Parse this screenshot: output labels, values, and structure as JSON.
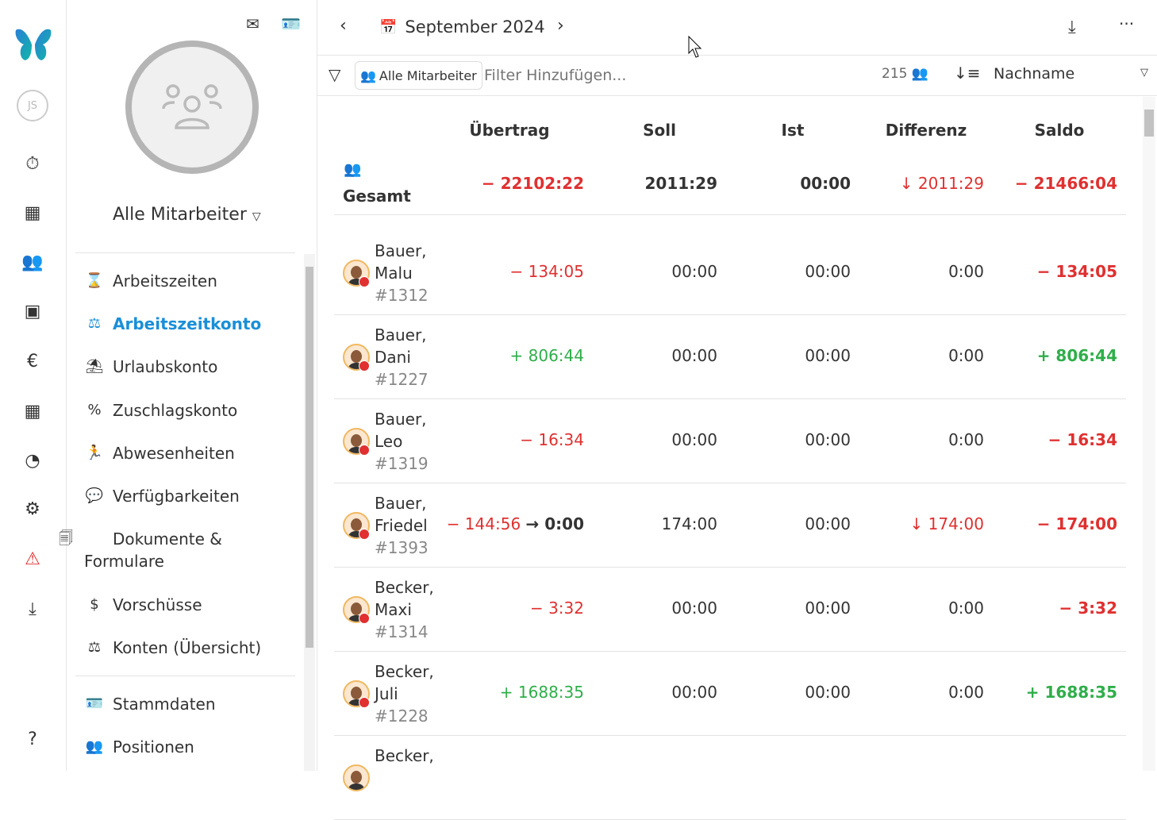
{
  "rail": {
    "user_initials": "JS",
    "items": [
      "stopwatch-icon",
      "table-icon",
      "team-icon",
      "contact-icon",
      "euro-icon",
      "calendar-icon",
      "pie-chart-icon",
      "gear-icon",
      "warning-icon",
      "download-icon"
    ],
    "help": "?"
  },
  "sidebar": {
    "group_title": "Alle Mitarbeiter",
    "items": [
      {
        "label": "Arbeitszeiten",
        "icon": "⌛"
      },
      {
        "label": "Arbeitszeitkonto",
        "icon": "⚖",
        "active": true
      },
      {
        "label": "Urlaubskonto",
        "icon": "⛱"
      },
      {
        "label": "Zuschlagskonto",
        "icon": "%"
      },
      {
        "label": "Abwesenheiten",
        "icon": "🏃"
      },
      {
        "label": "Verfügbarkeiten",
        "icon": "💬"
      },
      {
        "label": "Dokumente & Formulare",
        "icon": "🗐"
      },
      {
        "label": "Vorschüsse",
        "icon": "$"
      },
      {
        "label": "Konten (Übersicht)",
        "icon": "⚖"
      },
      {
        "label": "Stammdaten",
        "icon": "🪪"
      },
      {
        "label": "Positionen",
        "icon": "👥"
      }
    ]
  },
  "topbar": {
    "period": "September 2024"
  },
  "filter": {
    "chip": "Alle Mitarbeiter",
    "placeholder": "Filter Hinzufügen...",
    "count": "215",
    "sort_field": "Nachname"
  },
  "table": {
    "columns": [
      "Übertrag",
      "Soll",
      "Ist",
      "Differenz",
      "Saldo"
    ],
    "total": {
      "label": "Gesamt",
      "uebertrag": "− 22102:22",
      "soll": "2011:29",
      "ist": "00:00",
      "differenz": "↓ 2011:29",
      "saldo": "− 21466:04"
    },
    "rows": [
      {
        "last": "Bauer,",
        "first": "Malu",
        "id": "#1312",
        "uebertrag": "− 134:05",
        "u_color": "red",
        "soll": "00:00",
        "ist": "00:00",
        "differenz": "0:00",
        "d_color": "",
        "saldo": "− 134:05",
        "s_color": "red"
      },
      {
        "last": "Bauer,",
        "first": "Dani",
        "id": "#1227",
        "uebertrag": "+ 806:44",
        "u_color": "green",
        "soll": "00:00",
        "ist": "00:00",
        "differenz": "0:00",
        "d_color": "",
        "saldo": "+ 806:44",
        "s_color": "green"
      },
      {
        "last": "Bauer,",
        "first": "Leo",
        "id": "#1319",
        "uebertrag": "− 16:34",
        "u_color": "red",
        "soll": "00:00",
        "ist": "00:00",
        "differenz": "0:00",
        "d_color": "",
        "saldo": "− 16:34",
        "s_color": "red"
      },
      {
        "last": "Bauer,",
        "first": "Friedel",
        "id": "#1393",
        "uebertrag": "− 144:56",
        "u_color": "red",
        "u_arrow": "→ 0:00",
        "soll": "174:00",
        "ist": "00:00",
        "differenz": "↓ 174:00",
        "d_color": "red",
        "saldo": "− 174:00",
        "s_color": "red"
      },
      {
        "last": "Becker,",
        "first": "Maxi",
        "id": "#1314",
        "uebertrag": "− 3:32",
        "u_color": "red",
        "soll": "00:00",
        "ist": "00:00",
        "differenz": "0:00",
        "d_color": "",
        "saldo": "− 3:32",
        "s_color": "red"
      },
      {
        "last": "Becker,",
        "first": "Juli",
        "id": "#1228",
        "uebertrag": "+ 1688:35",
        "u_color": "green",
        "soll": "00:00",
        "ist": "00:00",
        "differenz": "0:00",
        "d_color": "",
        "saldo": "+ 1688:35",
        "s_color": "green"
      },
      {
        "last": "Becker,",
        "first": "",
        "id": "",
        "uebertrag": "",
        "u_color": "",
        "soll": "",
        "ist": "",
        "differenz": "",
        "d_color": "",
        "saldo": "",
        "s_color": ""
      }
    ]
  },
  "colors": {
    "accent": "#1a8fd8",
    "negative": "#e03030",
    "positive": "#2fae4a"
  }
}
